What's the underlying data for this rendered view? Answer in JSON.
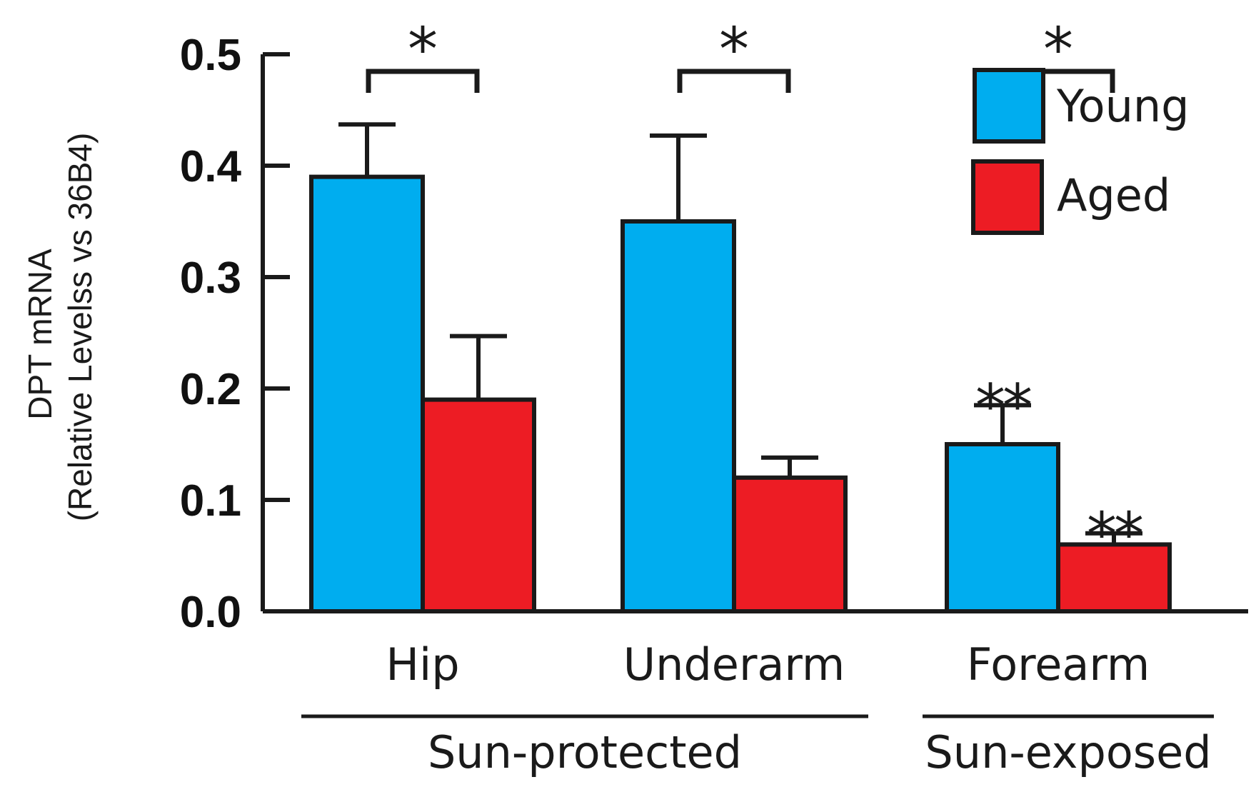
{
  "chart_data": {
    "type": "bar",
    "title": "",
    "xlabel": "",
    "ylabel_line1": "DPT mRNA",
    "ylabel_line2": "(Relative Levelss vs 36B4)",
    "ylim": [
      0,
      0.5
    ],
    "yticks": [
      "0.0",
      "0.1",
      "0.2",
      "0.3",
      "0.4",
      "0.5"
    ],
    "categories": [
      "Hip",
      "Underarm",
      "Forearm"
    ],
    "series": [
      {
        "name": "Young",
        "color": "#00ADEF",
        "values": [
          0.39,
          0.35,
          0.15
        ],
        "errors": [
          0.047,
          0.077,
          0.035
        ]
      },
      {
        "name": "Aged",
        "color": "#ED1C24",
        "values": [
          0.19,
          0.12,
          0.06
        ],
        "errors": [
          0.057,
          0.018,
          0.01
        ]
      }
    ],
    "groups": [
      {
        "label": "Sun-protected",
        "categories": [
          "Hip",
          "Underarm"
        ]
      },
      {
        "label": "Sun-exposed",
        "categories": [
          "Forearm"
        ]
      }
    ],
    "significance": {
      "pair_marker": "*",
      "bar_marker": "**",
      "pairs": [
        "Hip",
        "Underarm",
        "Forearm"
      ],
      "bars": [
        {
          "category": "Forearm",
          "series": "Young"
        },
        {
          "category": "Forearm",
          "series": "Aged"
        }
      ]
    },
    "legend": {
      "position": "top-right",
      "entries": [
        "Young",
        "Aged"
      ]
    }
  }
}
